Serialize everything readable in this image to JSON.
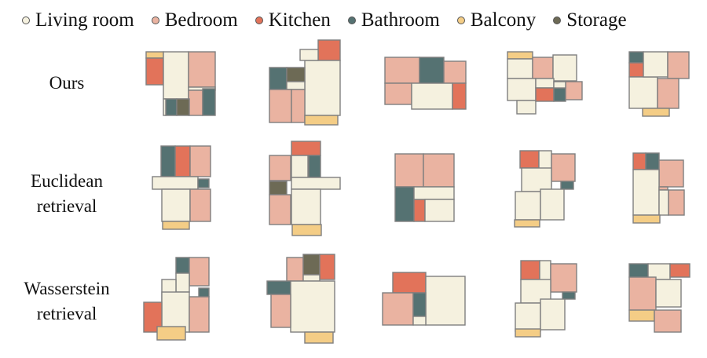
{
  "colors": {
    "living": "#f5f1df",
    "bedroom": "#eab3a1",
    "kitchen": "#e2735a",
    "bathroom": "#557272",
    "balcony": "#f4cd86",
    "storage": "#6d6a55",
    "wall": "#7f7f7f"
  },
  "legend": [
    {
      "key": "living",
      "label": "Living room"
    },
    {
      "key": "bedroom",
      "label": "Bedroom"
    },
    {
      "key": "kitchen",
      "label": "Kitchen"
    },
    {
      "key": "bathroom",
      "label": "Bathroom"
    },
    {
      "key": "balcony",
      "label": "Balcony"
    },
    {
      "key": "storage",
      "label": "Storage"
    }
  ],
  "rows": [
    {
      "label_lines": [
        "Ours"
      ]
    },
    {
      "label_lines": [
        "Euclidean",
        "retrieval"
      ]
    },
    {
      "label_lines": [
        "Wasserstein",
        "retrieval"
      ]
    }
  ]
}
